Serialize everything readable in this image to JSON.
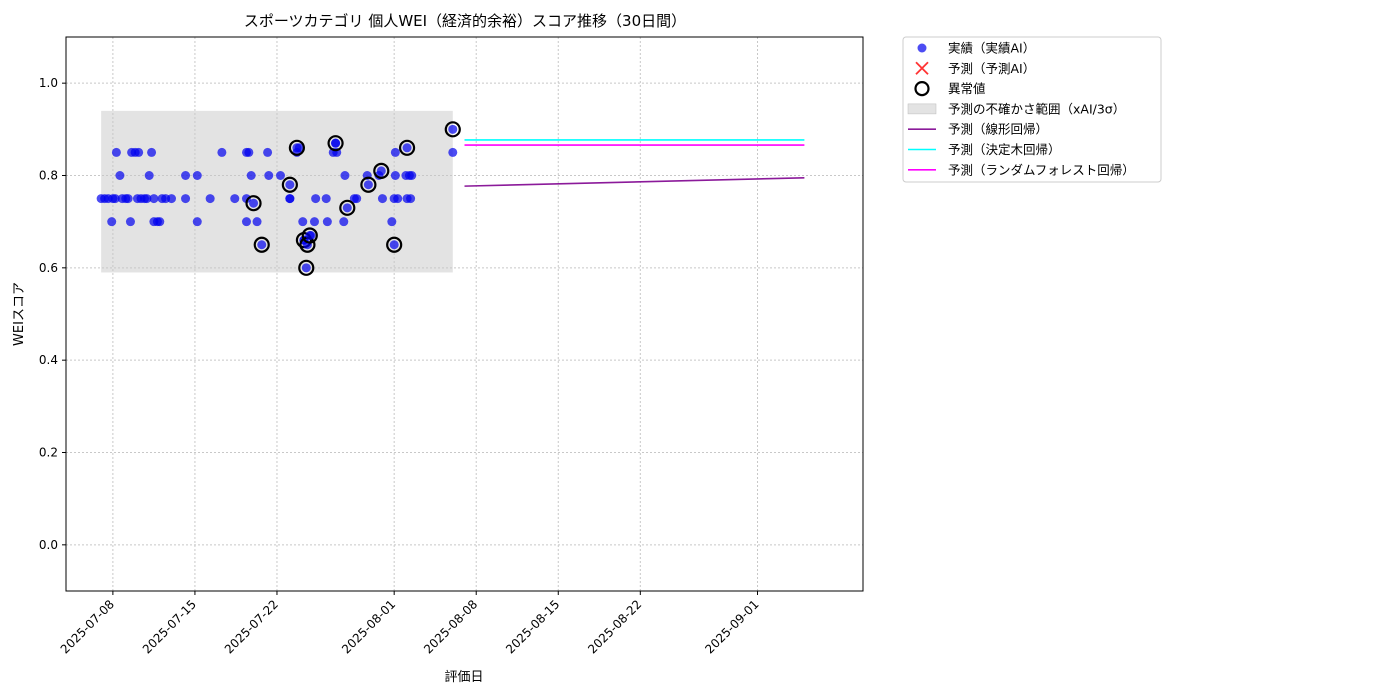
{
  "chart_data": {
    "type": "scatter",
    "title": "スポーツカテゴリ 個人WEI（経済的余裕）スコア推移（30日間）",
    "xlabel": "評価日",
    "ylabel": "WEIスコア",
    "xlim": [
      "2025-07-04",
      "2025-09-10"
    ],
    "ylim": [
      -0.1,
      1.1
    ],
    "yticks": [
      0.0,
      0.2,
      0.4,
      0.6,
      0.8,
      1.0
    ],
    "ytick_labels": [
      "0.0",
      "0.2",
      "0.4",
      "0.6",
      "0.8",
      "1.0"
    ],
    "xticks": [
      "2025-07-08",
      "2025-07-15",
      "2025-07-22",
      "2025-08-01",
      "2025-08-08",
      "2025-08-15",
      "2025-08-22",
      "2025-09-01"
    ],
    "xtick_labels": [
      "2025-07-08",
      "2025-07-15",
      "2025-07-22",
      "2025-08-01",
      "2025-08-08",
      "2025-08-15",
      "2025-08-22",
      "2025-09-01"
    ],
    "grid": true,
    "legend_position": "outside-top-right",
    "colors": {
      "actual": "#0000ee",
      "predicted_ai": "#ff3333",
      "anomaly": "#000000",
      "uncertainty": "#c8c8c8",
      "linear": "#8b1a9a",
      "tree": "#00ffff",
      "forest": "#ff00ff"
    },
    "legend": [
      {
        "key": "actual",
        "label": "実績（実績AI）",
        "marker": "dot"
      },
      {
        "key": "predicted_ai",
        "label": "予測（予測AI）",
        "marker": "x"
      },
      {
        "key": "anomaly",
        "label": "異常値",
        "marker": "ring"
      },
      {
        "key": "uncertainty",
        "label": "予測の不確かさ範囲（xAI/3σ）",
        "marker": "patch"
      },
      {
        "key": "linear",
        "label": "予測（線形回帰）",
        "marker": "line"
      },
      {
        "key": "tree",
        "label": "予測（決定木回帰）",
        "marker": "line"
      },
      {
        "key": "forest",
        "label": "予測（ランダムフォレスト回帰）",
        "marker": "line"
      }
    ],
    "uncertainty_band": {
      "x": [
        "2025-07-07",
        "2025-08-06"
      ],
      "y": [
        0.59,
        0.94
      ]
    },
    "series": [
      {
        "key": "actual",
        "points": [
          [
            "2025-07-07",
            0.75
          ],
          [
            "2025-07-07.3",
            0.75
          ],
          [
            "2025-07-07.6",
            0.75
          ],
          [
            "2025-07-07.9",
            0.7
          ],
          [
            "2025-07-08",
            0.75
          ],
          [
            "2025-07-08.2",
            0.75
          ],
          [
            "2025-07-08.3",
            0.85
          ],
          [
            "2025-07-08.6",
            0.8
          ],
          [
            "2025-07-08.8",
            0.75
          ],
          [
            "2025-07-09.1",
            0.75
          ],
          [
            "2025-07-09.3",
            0.75
          ],
          [
            "2025-07-09.5",
            0.7
          ],
          [
            "2025-07-09.6",
            0.85
          ],
          [
            "2025-07-09.9",
            0.85
          ],
          [
            "2025-07-10.1",
            0.75
          ],
          [
            "2025-07-10.2",
            0.85
          ],
          [
            "2025-07-10.4",
            0.75
          ],
          [
            "2025-07-10.7",
            0.75
          ],
          [
            "2025-07-10.9",
            0.75
          ],
          [
            "2025-07-11.1",
            0.8
          ],
          [
            "2025-07-11.3",
            0.85
          ],
          [
            "2025-07-11.5",
            0.75
          ],
          [
            "2025-07-11.5",
            0.7
          ],
          [
            "2025-07-11.8",
            0.7
          ],
          [
            "2025-07-12",
            0.7
          ],
          [
            "2025-07-12.2",
            0.75
          ],
          [
            "2025-07-12.5",
            0.75
          ],
          [
            "2025-07-13",
            0.75
          ],
          [
            "2025-07-14.2",
            0.8
          ],
          [
            "2025-07-14.2",
            0.75
          ],
          [
            "2025-07-15.2",
            0.8
          ],
          [
            "2025-07-15.2",
            0.7
          ],
          [
            "2025-07-16.3",
            0.75
          ],
          [
            "2025-07-17.3",
            0.85
          ],
          [
            "2025-07-18.4",
            0.75
          ],
          [
            "2025-07-19.4",
            0.85
          ],
          [
            "2025-07-19.4",
            0.7
          ],
          [
            "2025-07-19.4",
            0.75
          ],
          [
            "2025-07-19.6",
            0.85
          ],
          [
            "2025-07-19.8",
            0.8
          ],
          [
            "2025-07-20.3",
            0.7
          ],
          [
            "2025-07-21.2",
            0.85
          ],
          [
            "2025-07-21.3",
            0.8
          ],
          [
            "2025-07-22.3",
            0.8
          ],
          [
            "2025-07-23.1",
            0.75
          ],
          [
            "2025-07-23.1",
            0.75
          ],
          [
            "2025-07-23.7",
            0.85
          ],
          [
            "2025-07-23.9",
            0.86
          ],
          [
            "2025-07-24.2",
            0.7
          ],
          [
            "2025-07-24.3",
            0.66
          ],
          [
            "2025-07-24.9",
            0.67
          ],
          [
            "2025-07-25.2",
            0.7
          ],
          [
            "2025-07-25.3",
            0.75
          ],
          [
            "2025-07-26.2",
            0.75
          ],
          [
            "2025-07-26.3",
            0.7
          ],
          [
            "2025-07-26.8",
            0.85
          ],
          [
            "2025-07-27",
            0.87
          ],
          [
            "2025-07-27.1",
            0.85
          ],
          [
            "2025-07-27.7",
            0.7
          ],
          [
            "2025-07-27.8",
            0.8
          ],
          [
            "2025-07-28.6",
            0.75
          ],
          [
            "2025-07-28.8",
            0.75
          ],
          [
            "2025-07-29.7",
            0.8
          ],
          [
            "2025-07-30.7",
            0.8
          ],
          [
            "2025-07-31",
            0.75
          ],
          [
            "2025-07-31.8",
            0.7
          ],
          [
            "2025-08-01",
            0.75
          ],
          [
            "2025-08-01.1",
            0.8
          ],
          [
            "2025-08-01.1",
            0.85
          ],
          [
            "2025-08-01.3",
            0.75
          ],
          [
            "2025-08-02",
            0.8
          ],
          [
            "2025-08-02.1",
            0.75
          ],
          [
            "2025-08-02.3",
            0.8
          ],
          [
            "2025-08-02.4",
            0.75
          ],
          [
            "2025-08-02.5",
            0.8
          ],
          [
            "2025-08-06",
            0.85
          ]
        ]
      },
      {
        "key": "anomaly",
        "points": [
          [
            "2025-07-20",
            0.74
          ],
          [
            "2025-07-20.7",
            0.65
          ],
          [
            "2025-07-23.1",
            0.78
          ],
          [
            "2025-07-23.7",
            0.86
          ],
          [
            "2025-07-24.3",
            0.66
          ],
          [
            "2025-07-24.6",
            0.65
          ],
          [
            "2025-07-24.5",
            0.6
          ],
          [
            "2025-07-24.8",
            0.67
          ],
          [
            "2025-07-27",
            0.87
          ],
          [
            "2025-07-28",
            0.73
          ],
          [
            "2025-07-29.8",
            0.78
          ],
          [
            "2025-07-30.9",
            0.81
          ],
          [
            "2025-08-01",
            0.65
          ],
          [
            "2025-08-02.1",
            0.86
          ],
          [
            "2025-08-06",
            0.9
          ]
        ]
      }
    ],
    "prediction_lines": [
      {
        "key": "linear",
        "x": [
          "2025-08-07",
          "2025-09-05"
        ],
        "y": [
          0.777,
          0.795
        ]
      },
      {
        "key": "tree",
        "x": [
          "2025-08-07",
          "2025-09-05"
        ],
        "y": [
          0.877,
          0.877
        ]
      },
      {
        "key": "forest",
        "x": [
          "2025-08-07",
          "2025-09-05"
        ],
        "y": [
          0.866,
          0.866
        ]
      }
    ]
  }
}
